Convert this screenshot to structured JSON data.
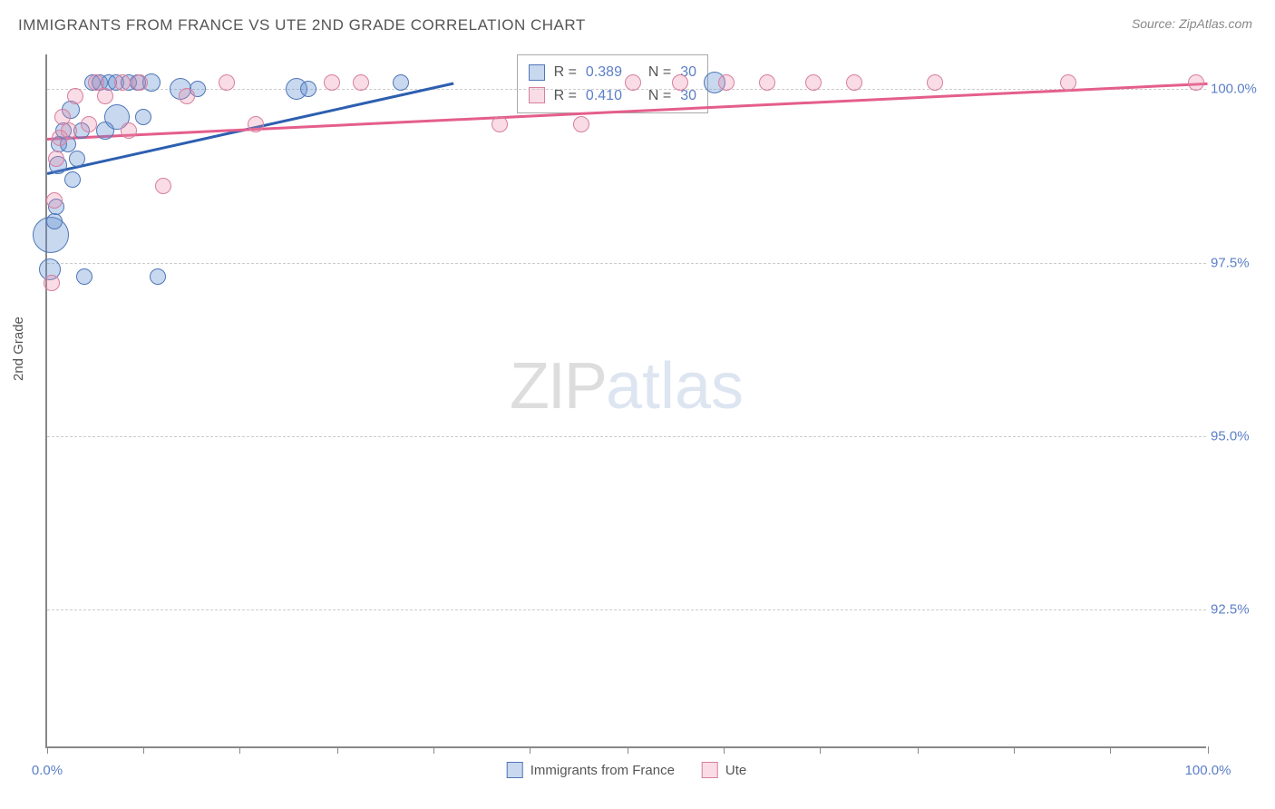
{
  "title": "IMMIGRANTS FROM FRANCE VS UTE 2ND GRADE CORRELATION CHART",
  "source": "Source: ZipAtlas.com",
  "y_axis_title": "2nd Grade",
  "watermark": {
    "part1": "ZIP",
    "part2": "atlas"
  },
  "chart": {
    "type": "scatter",
    "background_color": "#ffffff",
    "grid_color": "#cccccc",
    "axis_color": "#888888",
    "label_color": "#5b7fc7",
    "text_color": "#555555",
    "xlim": [
      0,
      100
    ],
    "ylim": [
      90.5,
      100.5
    ],
    "y_ticks": [
      {
        "value": 100.0,
        "label": "100.0%"
      },
      {
        "value": 97.5,
        "label": "97.5%"
      },
      {
        "value": 95.0,
        "label": "95.0%"
      },
      {
        "value": 92.5,
        "label": "92.5%"
      }
    ],
    "x_tick_positions": [
      0,
      8.3,
      16.6,
      25,
      33.3,
      41.6,
      50,
      58.3,
      66.6,
      75,
      83.3,
      91.6,
      100
    ],
    "x_labels": [
      {
        "value": 0,
        "label": "0.0%"
      },
      {
        "value": 100,
        "label": "100.0%"
      }
    ],
    "series": [
      {
        "name": "Immigrants from France",
        "fill": "rgba(98,144,210,0.35)",
        "stroke": "#4f77b8",
        "line_color": "#2d5fb0",
        "R": "0.389",
        "N": "30",
        "trend": {
          "x1": 0,
          "y1": 98.8,
          "x2": 35,
          "y2": 100.1
        },
        "points": [
          {
            "x": 0.2,
            "y": 97.4,
            "r": 12
          },
          {
            "x": 0.3,
            "y": 97.9,
            "r": 20
          },
          {
            "x": 0.6,
            "y": 98.1,
            "r": 9
          },
          {
            "x": 0.8,
            "y": 98.3,
            "r": 9
          },
          {
            "x": 0.9,
            "y": 98.9,
            "r": 10
          },
          {
            "x": 1.0,
            "y": 99.2,
            "r": 9
          },
          {
            "x": 1.4,
            "y": 99.4,
            "r": 9
          },
          {
            "x": 1.8,
            "y": 99.2,
            "r": 9
          },
          {
            "x": 2.0,
            "y": 99.7,
            "r": 10
          },
          {
            "x": 2.2,
            "y": 98.7,
            "r": 9
          },
          {
            "x": 2.6,
            "y": 99.0,
            "r": 9
          },
          {
            "x": 3.0,
            "y": 99.4,
            "r": 9
          },
          {
            "x": 3.2,
            "y": 97.3,
            "r": 9
          },
          {
            "x": 3.9,
            "y": 100.1,
            "r": 9
          },
          {
            "x": 4.5,
            "y": 100.1,
            "r": 9
          },
          {
            "x": 5.0,
            "y": 99.4,
            "r": 10
          },
          {
            "x": 5.3,
            "y": 100.1,
            "r": 9
          },
          {
            "x": 5.9,
            "y": 100.1,
            "r": 9
          },
          {
            "x": 6.0,
            "y": 99.6,
            "r": 14
          },
          {
            "x": 7.0,
            "y": 100.1,
            "r": 9
          },
          {
            "x": 7.8,
            "y": 100.1,
            "r": 9
          },
          {
            "x": 8.3,
            "y": 99.6,
            "r": 9
          },
          {
            "x": 9.0,
            "y": 100.1,
            "r": 10
          },
          {
            "x": 9.5,
            "y": 97.3,
            "r": 9
          },
          {
            "x": 11.5,
            "y": 100.0,
            "r": 12
          },
          {
            "x": 13.0,
            "y": 100.0,
            "r": 9
          },
          {
            "x": 21.5,
            "y": 100.0,
            "r": 12
          },
          {
            "x": 22.5,
            "y": 100.0,
            "r": 9
          },
          {
            "x": 30.5,
            "y": 100.1,
            "r": 9
          },
          {
            "x": 57.5,
            "y": 100.1,
            "r": 12
          }
        ]
      },
      {
        "name": "Ute",
        "fill": "rgba(235,140,170,0.30)",
        "stroke": "#d77fa0",
        "line_color": "#e45e8c",
        "R": "0.410",
        "N": "30",
        "trend": {
          "x1": 0,
          "y1": 99.3,
          "x2": 100,
          "y2": 100.1
        },
        "points": [
          {
            "x": 0.4,
            "y": 97.2,
            "r": 9
          },
          {
            "x": 0.6,
            "y": 98.4,
            "r": 9
          },
          {
            "x": 0.8,
            "y": 99.0,
            "r": 9
          },
          {
            "x": 1.1,
            "y": 99.3,
            "r": 9
          },
          {
            "x": 1.3,
            "y": 99.6,
            "r": 9
          },
          {
            "x": 1.9,
            "y": 99.4,
            "r": 9
          },
          {
            "x": 2.4,
            "y": 99.9,
            "r": 9
          },
          {
            "x": 3.6,
            "y": 99.5,
            "r": 9
          },
          {
            "x": 4.2,
            "y": 100.1,
            "r": 9
          },
          {
            "x": 5.0,
            "y": 99.9,
            "r": 9
          },
          {
            "x": 6.5,
            "y": 100.1,
            "r": 9
          },
          {
            "x": 7.0,
            "y": 99.4,
            "r": 9
          },
          {
            "x": 8.0,
            "y": 100.1,
            "r": 9
          },
          {
            "x": 10.0,
            "y": 98.6,
            "r": 9
          },
          {
            "x": 12.0,
            "y": 99.9,
            "r": 9
          },
          {
            "x": 15.5,
            "y": 100.1,
            "r": 9
          },
          {
            "x": 18.0,
            "y": 99.5,
            "r": 9
          },
          {
            "x": 24.5,
            "y": 100.1,
            "r": 9
          },
          {
            "x": 27.0,
            "y": 100.1,
            "r": 9
          },
          {
            "x": 39.0,
            "y": 99.5,
            "r": 9
          },
          {
            "x": 46.0,
            "y": 99.5,
            "r": 9
          },
          {
            "x": 50.5,
            "y": 100.1,
            "r": 9
          },
          {
            "x": 54.5,
            "y": 100.1,
            "r": 9
          },
          {
            "x": 58.5,
            "y": 100.1,
            "r": 9
          },
          {
            "x": 66.0,
            "y": 100.1,
            "r": 9
          },
          {
            "x": 69.5,
            "y": 100.1,
            "r": 9
          },
          {
            "x": 76.5,
            "y": 100.1,
            "r": 9
          },
          {
            "x": 88.0,
            "y": 100.1,
            "r": 9
          },
          {
            "x": 99.0,
            "y": 100.1,
            "r": 9
          },
          {
            "x": 62.0,
            "y": 100.1,
            "r": 9
          }
        ]
      }
    ]
  },
  "stats_box": {
    "left_pct": 40.5,
    "top_pct": 0
  },
  "legend": {
    "items": [
      {
        "label": "Immigrants from France",
        "fill": "rgba(98,144,210,0.35)",
        "stroke": "#4f77b8"
      },
      {
        "label": "Ute",
        "fill": "rgba(235,140,170,0.30)",
        "stroke": "#d77fa0"
      }
    ]
  }
}
